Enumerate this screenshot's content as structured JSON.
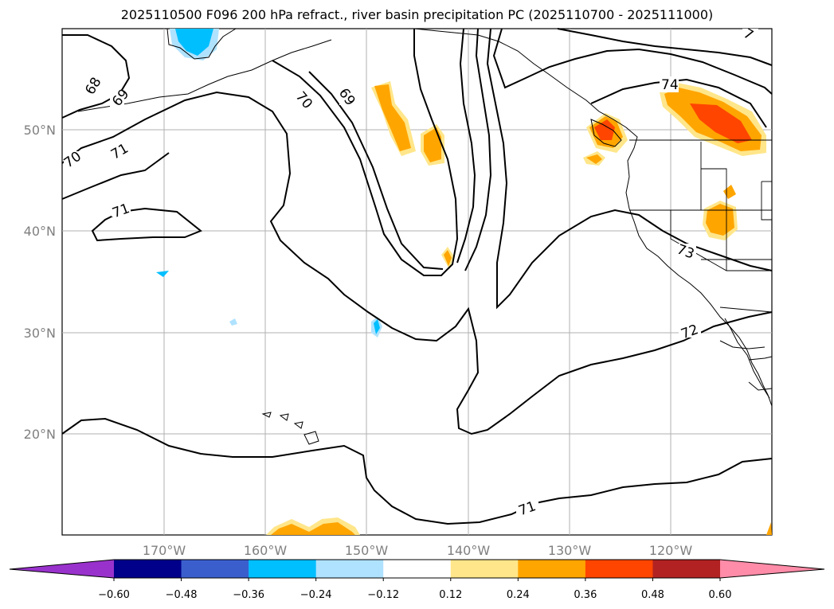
{
  "title": "2025110500 F096 200 hPa refract., river basin precipitation PC (2025110700 - 2025111000)",
  "lat_labels": [
    "50°N",
    "40°N",
    "30°N",
    "20°N"
  ],
  "lon_labels": [
    "170°W",
    "160°W",
    "150°W",
    "140°W",
    "130°W",
    "120°W"
  ],
  "contour_labels": [
    "68",
    "69",
    "70",
    "71",
    "71",
    "70",
    "69",
    "74",
    "73",
    "72",
    "71",
    "7"
  ],
  "colorbar": {
    "ticks": [
      "−0.60",
      "−0.48",
      "−0.36",
      "−0.24",
      "−0.12",
      "0.12",
      "0.24",
      "0.36",
      "0.48",
      "0.60"
    ],
    "colors": [
      "#9932cc",
      "#00008b",
      "#3a5fcd",
      "#00bfff",
      "#afe2ff",
      "#ffffff",
      "#ffe68a",
      "#ffa500",
      "#ff4500",
      "#b22222",
      "#ff8ca8"
    ]
  }
}
